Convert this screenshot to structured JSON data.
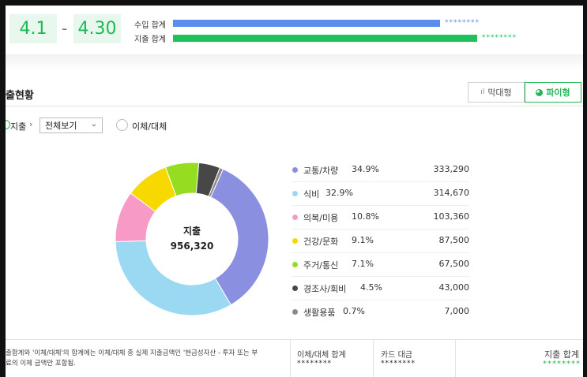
{
  "period": {
    "start": "4.1",
    "dash": "-",
    "end": "4.30"
  },
  "summary": {
    "income_label": "수입 합계",
    "income_value": "********",
    "expense_label": "지출 합계",
    "expense_value": "********",
    "income_color": "#5b8def",
    "expense_color": "#1ec25a"
  },
  "section": {
    "title": "출현황"
  },
  "view_toggle": {
    "bar_label": "막대형",
    "pie_label": "파이형"
  },
  "filter": {
    "type_label": "지출",
    "chevron": "›",
    "select_value": "전체보기",
    "transfer_label": "이체/대체"
  },
  "chart_data": {
    "type": "pie",
    "center_label": "지출",
    "center_value": "956,320",
    "slices": [
      {
        "name": "교통/차량",
        "percent": "34.9%",
        "value": "333,290",
        "amount": 333290,
        "color": "#8a8fe0"
      },
      {
        "name": "식비",
        "percent": "32.9%",
        "value": "314,670",
        "amount": 314670,
        "color": "#9bd8f2"
      },
      {
        "name": "의복/미용",
        "percent": "10.8%",
        "value": "103,360",
        "amount": 103360,
        "color": "#f79ac6"
      },
      {
        "name": "건강/문화",
        "percent": "9.1%",
        "value": "87,500",
        "amount": 87500,
        "color": "#f7d900"
      },
      {
        "name": "주거/통신",
        "percent": "7.1%",
        "value": "67,500",
        "amount": 67500,
        "color": "#96dc20"
      },
      {
        "name": "경조사/회비",
        "percent": "4.5%",
        "value": "43,000",
        "amount": 43000,
        "color": "#474747"
      },
      {
        "name": "생활용품",
        "percent": "0.7%",
        "value": "7,000",
        "amount": 7000,
        "color": "#8a8a8a"
      }
    ]
  },
  "footer": {
    "note_line1": "출합계와 '이체/대체'의 합계에는 이체/대체 중 실제 지출금액인 '현금성자산 - 투자 또는 부",
    "note_line2": "료의 이체 금액만 포함됨.",
    "transfer_total_label": "이체/대체 합계",
    "transfer_total_value": "********",
    "card_label": "카드 대금",
    "card_value": "********",
    "expense_total_label": "지출 합계",
    "expense_total_value": "********"
  }
}
